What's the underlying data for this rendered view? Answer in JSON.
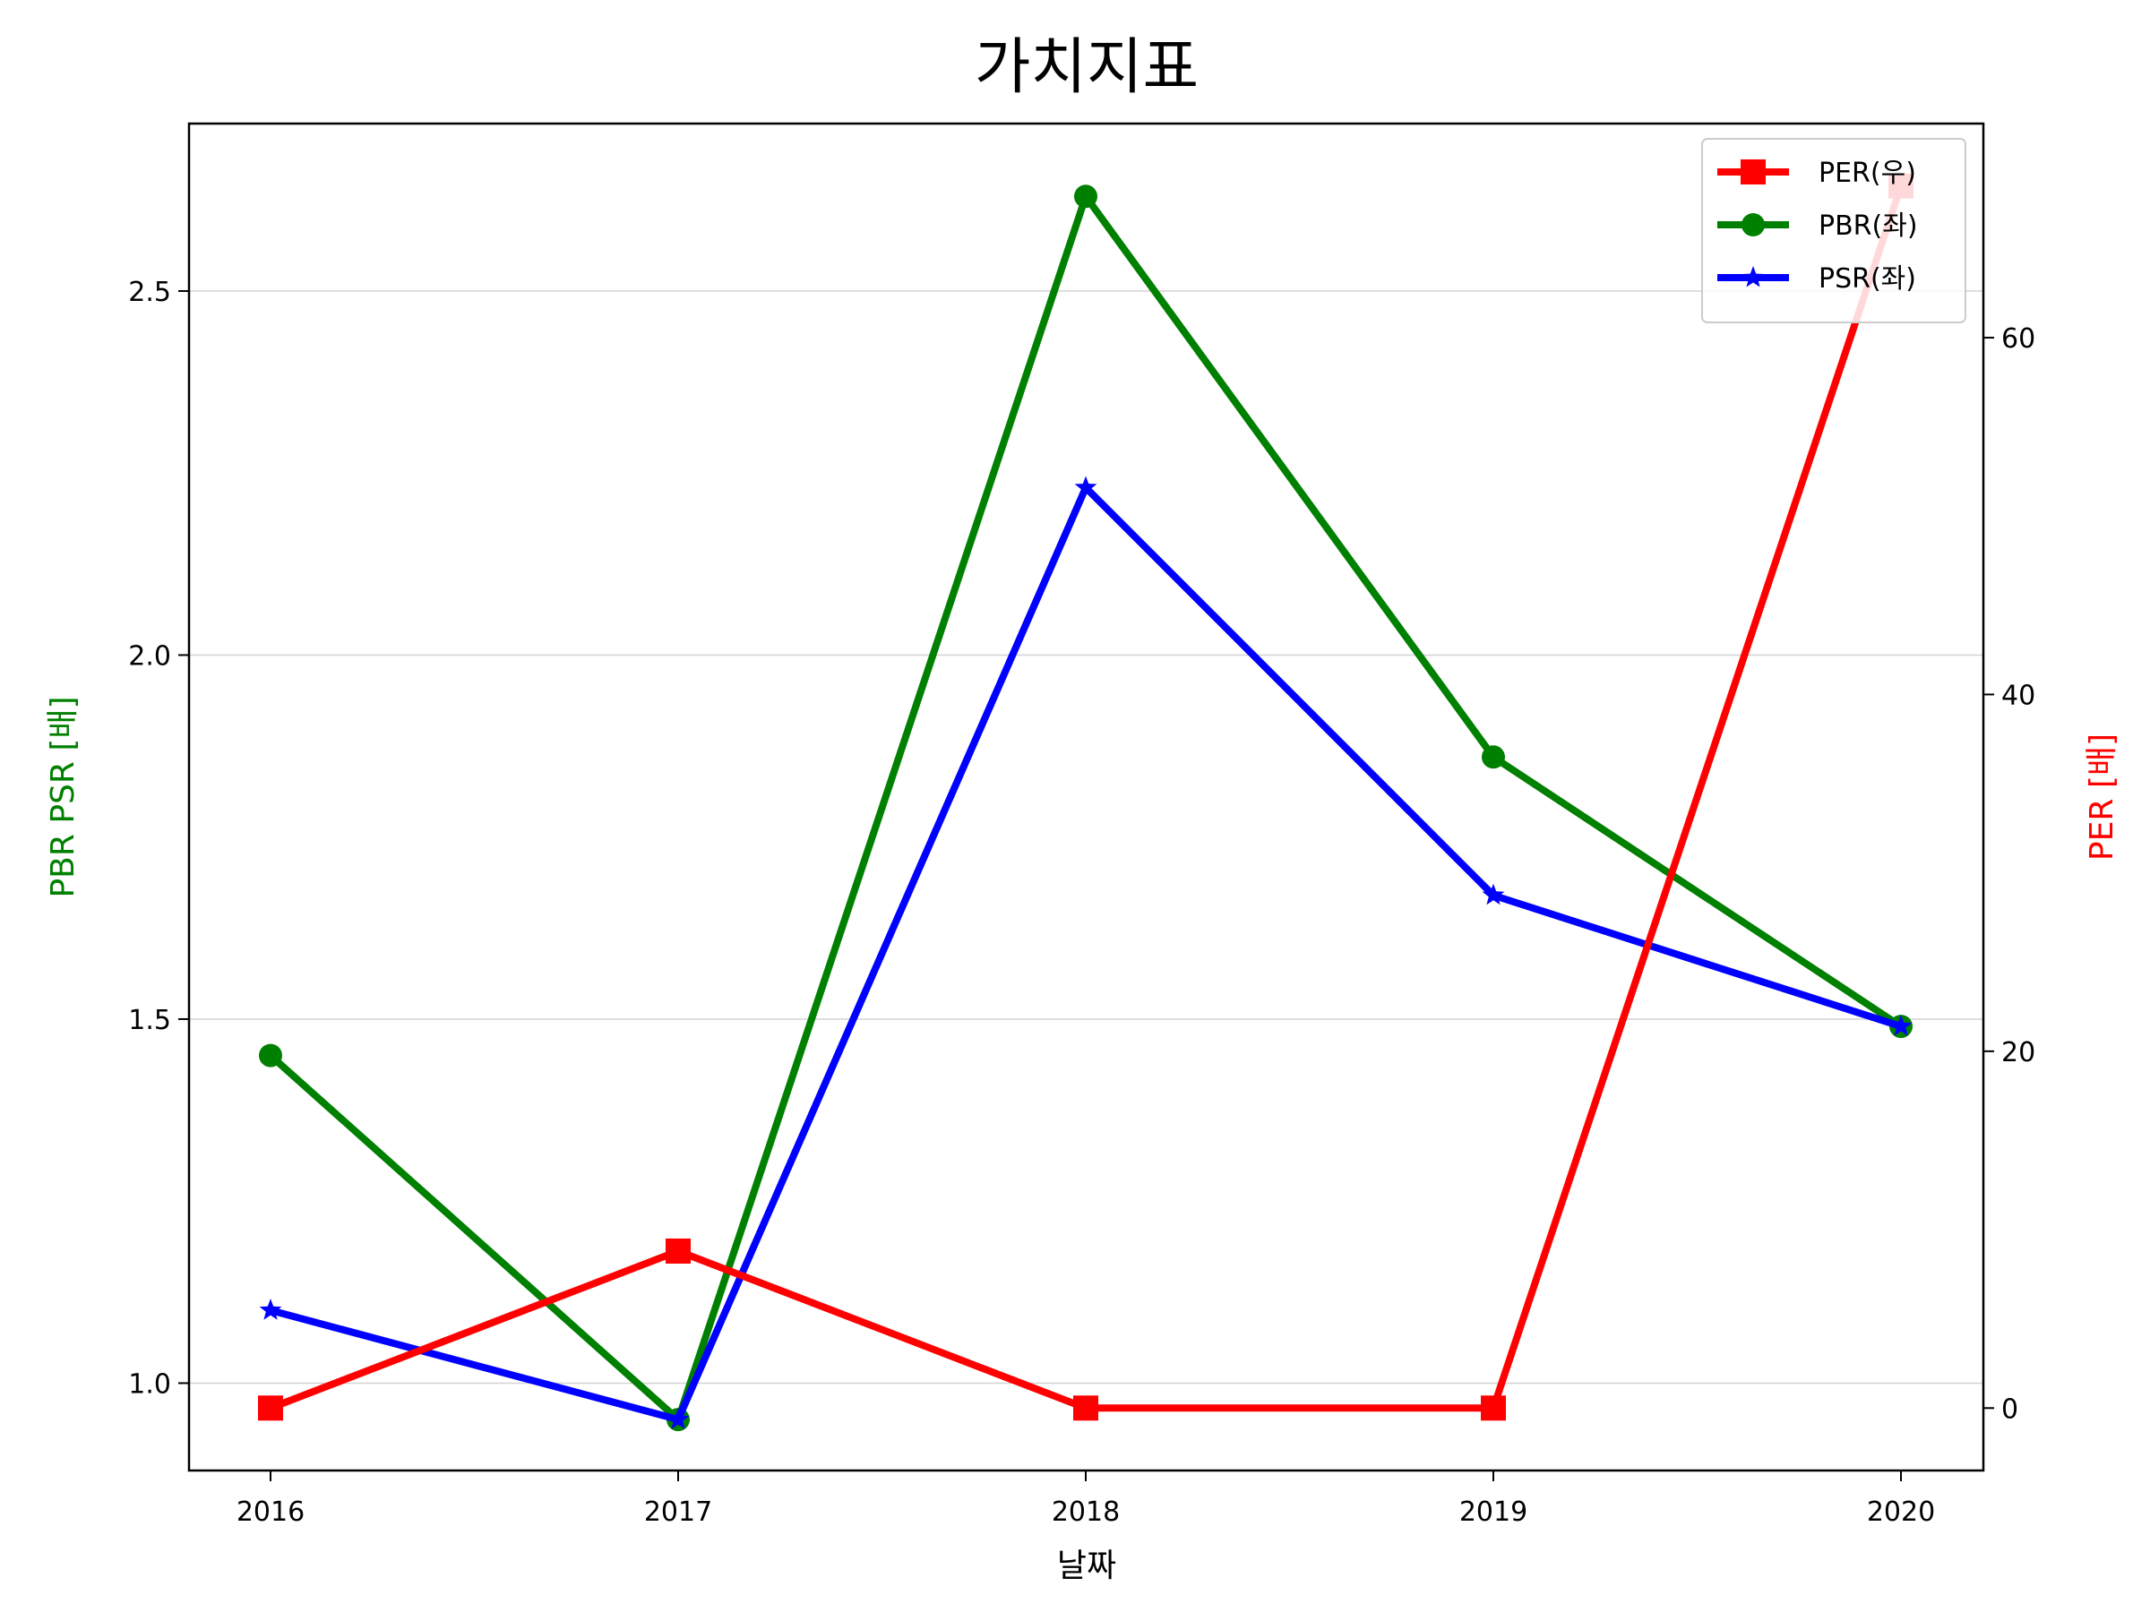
{
  "chart_data": {
    "type": "line",
    "title": "가치지표",
    "xlabel": "날짜",
    "ylabel_left": "PBR PSR [배]",
    "ylabel_right": "PER [배]",
    "categories": [
      "2016",
      "2017",
      "2018",
      "2019",
      "2020"
    ],
    "ylim_left": [
      0.88,
      2.73
    ],
    "ylim_right": [
      -3.5,
      72
    ],
    "yticks_left": [
      "1.0",
      "1.5",
      "2.0",
      "2.5"
    ],
    "yticks_left_values": [
      1.0,
      1.5,
      2.0,
      2.5
    ],
    "yticks_right": [
      "0",
      "20",
      "40",
      "60"
    ],
    "yticks_right_values": [
      0,
      20,
      40,
      60
    ],
    "grid": "horizontal (left axis)",
    "legend_position": "top-right",
    "series": [
      {
        "name": "PER(우)",
        "axis": "right",
        "color": "#ff0000",
        "marker": "square",
        "values": [
          0,
          8.8,
          0,
          0,
          68.5
        ]
      },
      {
        "name": "PBR(좌)",
        "axis": "left",
        "color": "#008000",
        "marker": "circle",
        "values": [
          1.45,
          0.95,
          2.63,
          1.86,
          1.49
        ]
      },
      {
        "name": "PSR(좌)",
        "axis": "left",
        "color": "#0000ff",
        "marker": "star",
        "values": [
          1.1,
          0.95,
          2.23,
          1.67,
          1.49
        ]
      }
    ],
    "colors": {
      "left_label": "#008000",
      "right_label": "#ff0000",
      "grid": "#d3d3d3",
      "frame": "#000000"
    }
  }
}
